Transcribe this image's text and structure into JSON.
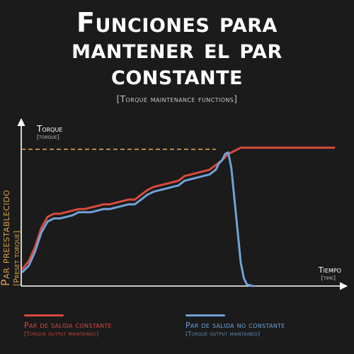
{
  "title": {
    "lines": [
      "Funciones para",
      "mantener el par",
      "constante"
    ],
    "subtitle": "[Torque maintenance functions]"
  },
  "colors": {
    "background": "#1b1b1b",
    "constant": "#d84a3c",
    "non_constant": "#6fa3d6",
    "preset": "#d9a24a",
    "axis": "#ffffff"
  },
  "chart_data": {
    "type": "line",
    "title": "",
    "xlabel": "Tiempo",
    "xlabel_sub": "[time]",
    "ylabel": "Torque",
    "ylabel_sub": "[torque]",
    "preset_label": "Par preestablecido",
    "preset_label_sub": "[Preset torque]",
    "xlim": [
      0,
      100
    ],
    "ylim": [
      0,
      100
    ],
    "preset_value": 87,
    "grid": false,
    "series": [
      {
        "name": "Par de salida constante",
        "name_sub": "[Torque output maintained]",
        "color": "#d84a3c",
        "x": [
          0,
          2,
          4,
          6,
          8,
          10,
          12,
          14,
          16,
          18,
          20,
          22,
          24,
          26,
          28,
          30,
          32,
          34,
          36,
          38,
          40,
          42,
          44,
          46,
          48,
          50,
          52,
          54,
          56,
          58,
          60,
          62,
          64,
          66,
          68,
          70,
          72,
          74,
          76,
          78,
          80,
          85,
          90,
          95,
          100
        ],
        "y": [
          11,
          16,
          25,
          37,
          44,
          46,
          46,
          47,
          48,
          49,
          49,
          50,
          51,
          52,
          52,
          53,
          54,
          55,
          55,
          58,
          61,
          63,
          64,
          65,
          66,
          67,
          70,
          71,
          72,
          73,
          74,
          77,
          80,
          84,
          86,
          88,
          88,
          88,
          88,
          88,
          88,
          88,
          88,
          88,
          88
        ]
      },
      {
        "name": "Par de salida no constante",
        "name_sub": "[Torque output maintained]",
        "color": "#6fa3d6",
        "x": [
          0,
          2,
          4,
          6,
          8,
          10,
          12,
          14,
          16,
          18,
          20,
          22,
          24,
          26,
          28,
          30,
          32,
          34,
          36,
          38,
          40,
          42,
          44,
          46,
          48,
          50,
          52,
          54,
          56,
          58,
          60,
          62,
          63,
          64,
          65,
          66,
          67,
          68,
          69,
          70,
          71,
          72,
          74
        ],
        "y": [
          9,
          13,
          22,
          34,
          41,
          43,
          43,
          44,
          45,
          47,
          47,
          47,
          48,
          49,
          49,
          50,
          51,
          52,
          52,
          55,
          58,
          60,
          61,
          62,
          63,
          64,
          67,
          68,
          69,
          70,
          71,
          74,
          78,
          80,
          84,
          85,
          75,
          55,
          35,
          15,
          5,
          1,
          0
        ]
      }
    ]
  }
}
